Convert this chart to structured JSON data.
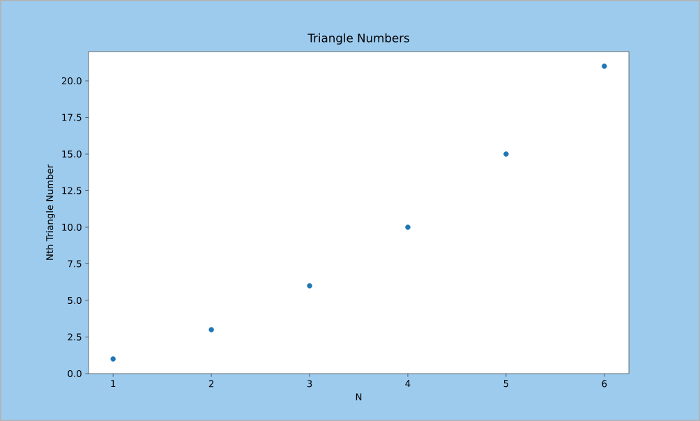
{
  "chart_data": {
    "type": "scatter",
    "title": "Triangle Numbers",
    "xlabel": "N",
    "ylabel": "Nth Triangle Number",
    "x": [
      1,
      2,
      3,
      4,
      5,
      6
    ],
    "values": [
      1,
      3,
      6,
      10,
      15,
      21
    ],
    "color": "#1f77b4",
    "marker": "circle",
    "xlim": [
      0.75,
      6.25
    ],
    "ylim": [
      0,
      22
    ],
    "xticks": [
      1,
      2,
      3,
      4,
      5,
      6
    ],
    "yticks": [
      {
        "value": 0,
        "label": "0.0"
      },
      {
        "value": 2.5,
        "label": "2.5"
      },
      {
        "value": 5,
        "label": "5.0"
      },
      {
        "value": 7.5,
        "label": "7.5"
      },
      {
        "value": 10,
        "label": "10.0"
      },
      {
        "value": 12.5,
        "label": "12.5"
      },
      {
        "value": 15,
        "label": "15.0"
      },
      {
        "value": 17.5,
        "label": "17.5"
      },
      {
        "value": 20,
        "label": "20.0"
      }
    ]
  }
}
